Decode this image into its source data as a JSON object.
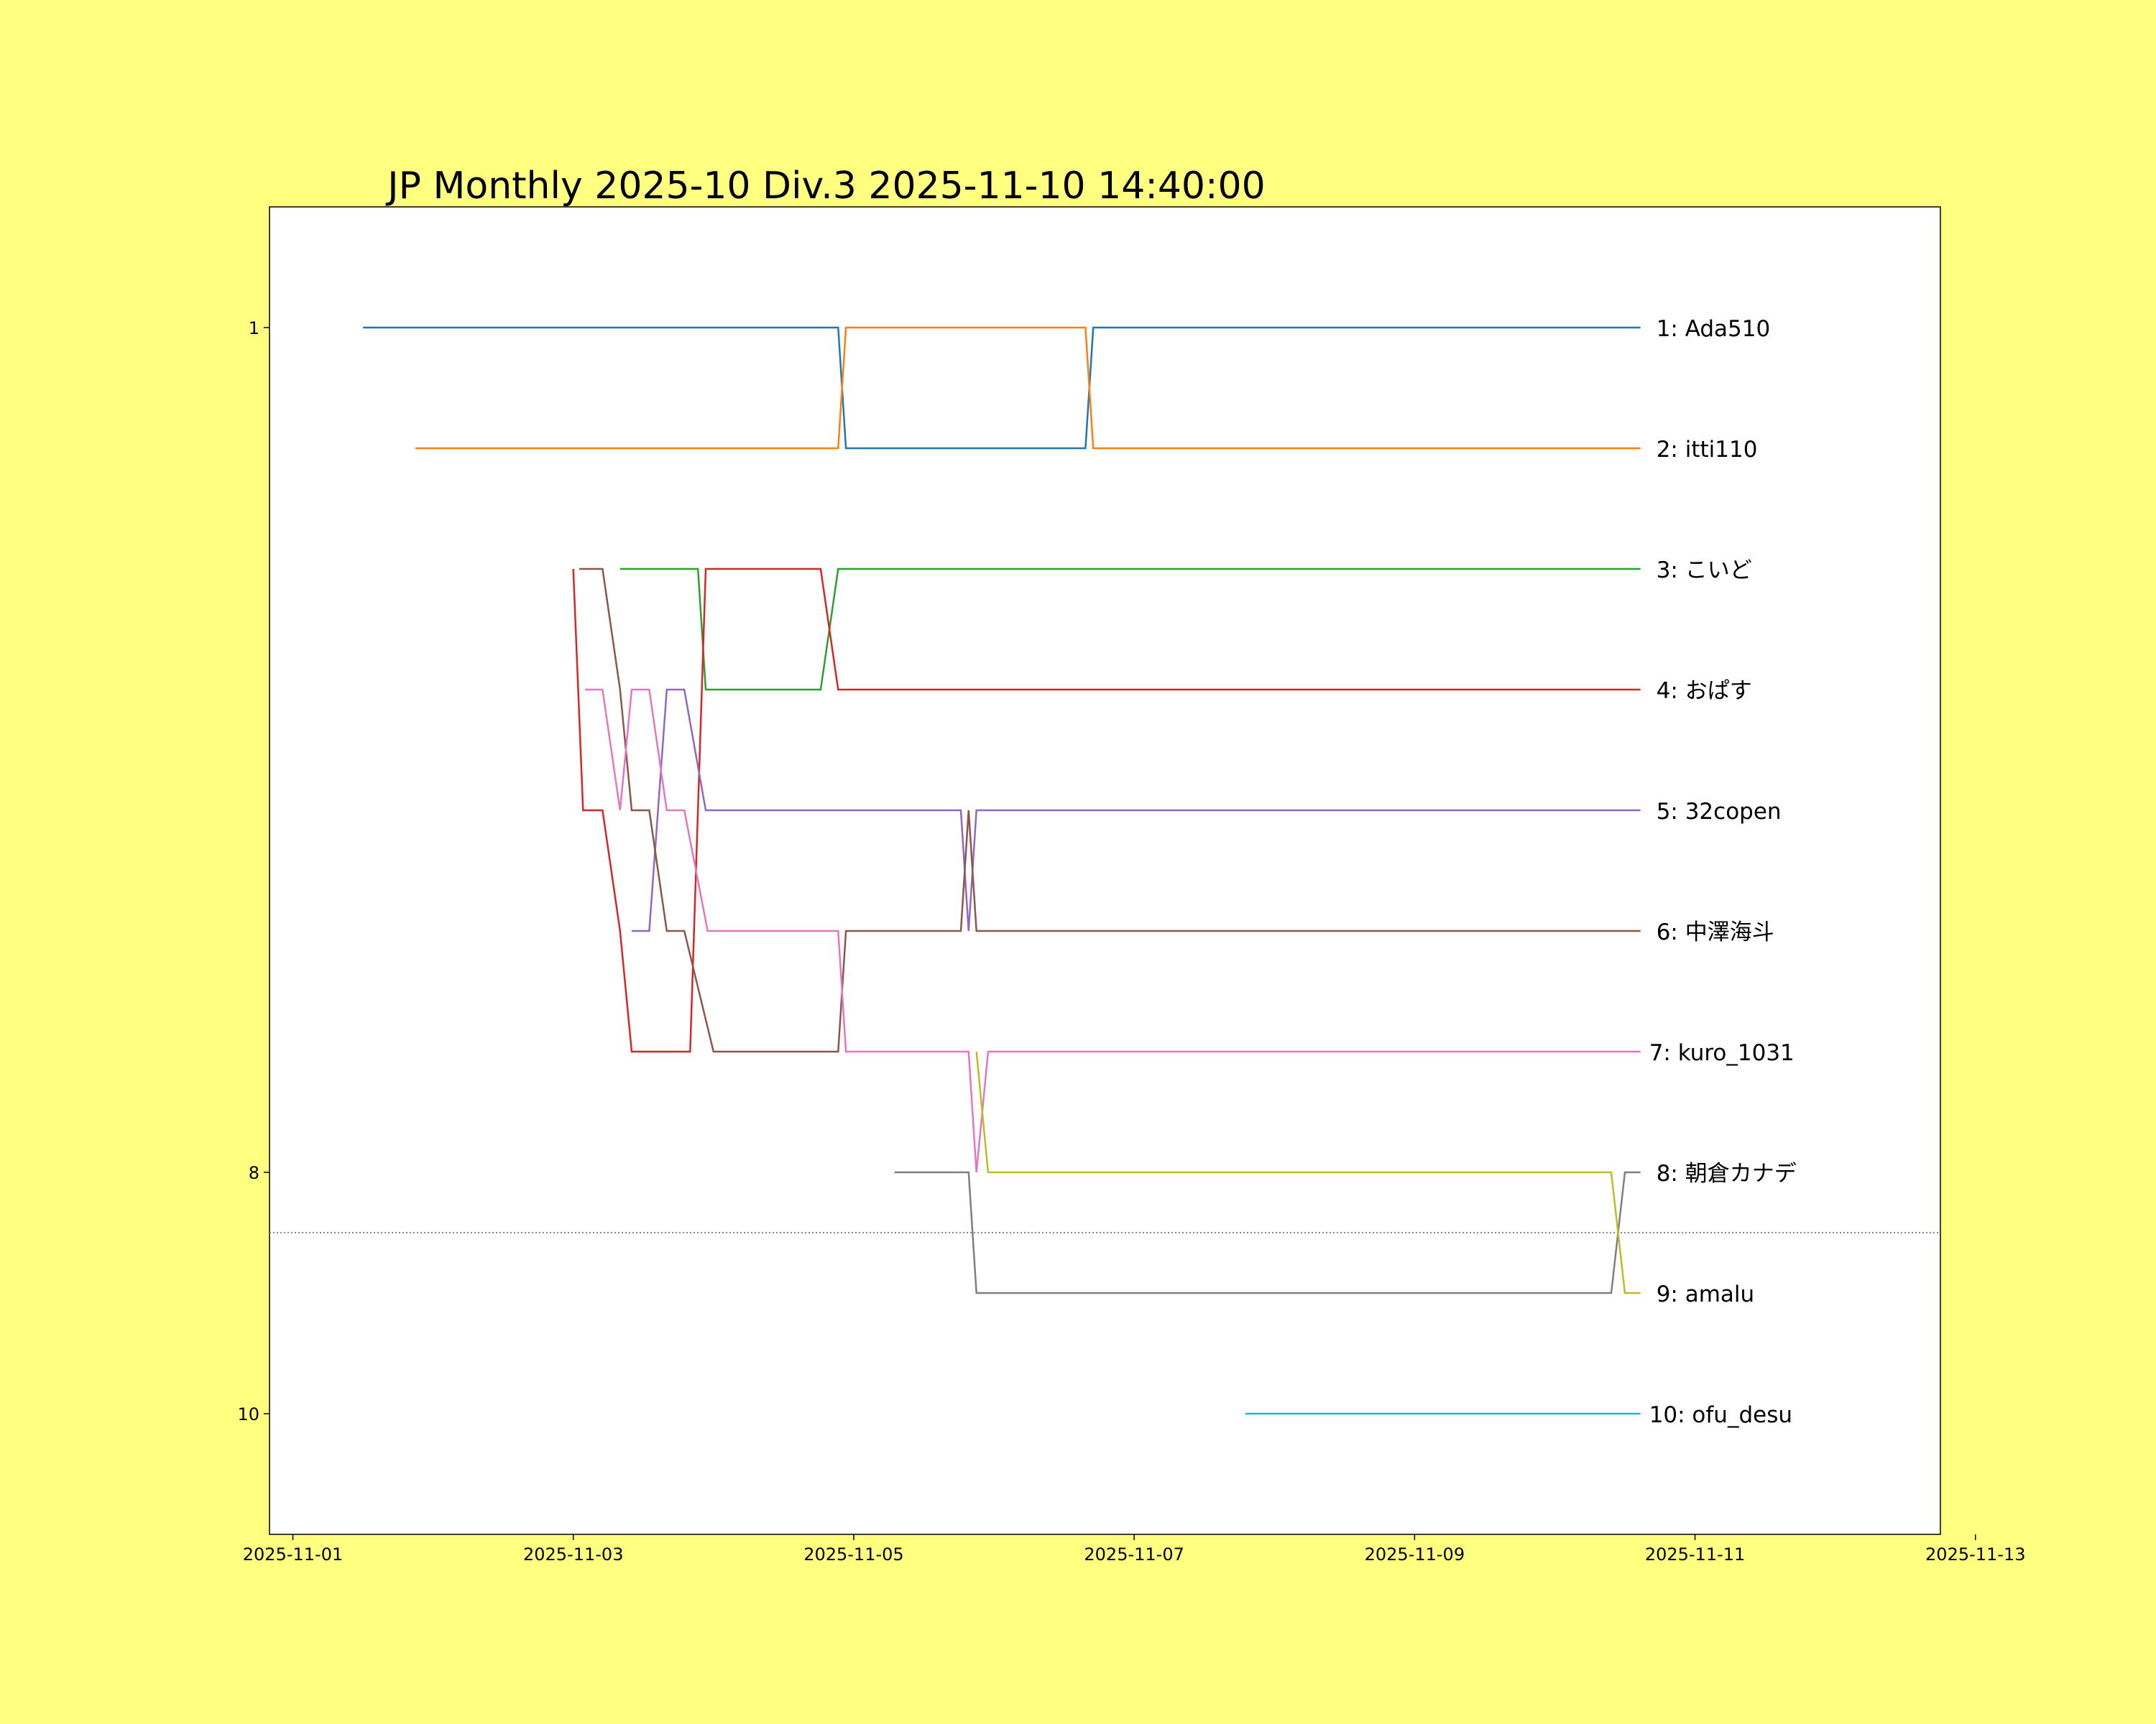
{
  "chart_data": {
    "type": "line",
    "title": "JP Monthly 2025-10 Div.3 2025-11-10 14:40:00",
    "xlabel": "",
    "ylabel": "",
    "x_axis": "date",
    "xlim": [
      "2025-10-31T20:00",
      "2025-11-12T18:00"
    ],
    "ylim": [
      11,
      0
    ],
    "y_inverted": true,
    "x_ticks": [
      "2025-11-01",
      "2025-11-03",
      "2025-11-05",
      "2025-11-07",
      "2025-11-09",
      "2025-11-11",
      "2025-11-13"
    ],
    "y_ticks": [
      "1",
      "8",
      "10"
    ],
    "cutoff_line": {
      "y": 8.5,
      "style": "dotted",
      "color": "#888888"
    },
    "grid": false,
    "legend": "none",
    "series": [
      {
        "name": "Ada510",
        "end_label": "1: Ada510",
        "color": "#1f77b4",
        "points": [
          [
            "2025-11-01T12:00",
            1
          ],
          [
            "2025-11-04T21:20",
            1
          ],
          [
            "2025-11-04T22:40",
            2
          ],
          [
            "2025-11-06T15:40",
            2
          ],
          [
            "2025-11-06T17:00",
            1
          ],
          [
            "2025-11-10T14:40",
            1
          ]
        ]
      },
      {
        "name": "itti110",
        "end_label": "2: itti110",
        "color": "#ff7f0e",
        "points": [
          [
            "2025-11-01T21:00",
            2
          ],
          [
            "2025-11-04T21:20",
            2
          ],
          [
            "2025-11-04T22:40",
            1
          ],
          [
            "2025-11-06T15:40",
            1
          ],
          [
            "2025-11-06T17:00",
            2
          ],
          [
            "2025-11-10T14:40",
            2
          ]
        ]
      },
      {
        "name": "こいど",
        "end_label": "3: こいど",
        "color": "#2ca02c",
        "points": [
          [
            "2025-11-03T08:00",
            3
          ],
          [
            "2025-11-03T21:20",
            3
          ],
          [
            "2025-11-03T22:40",
            4
          ],
          [
            "2025-11-04T18:20",
            4
          ],
          [
            "2025-11-04T21:20",
            3
          ],
          [
            "2025-11-10T14:40",
            3
          ]
        ]
      },
      {
        "name": "おぱす",
        "end_label": "4: おぱす",
        "color": "#d62728",
        "points": [
          [
            "2025-11-03T00:00",
            3
          ],
          [
            "2025-11-03T01:40",
            5
          ],
          [
            "2025-11-03T05:00",
            5
          ],
          [
            "2025-11-03T08:00",
            6
          ],
          [
            "2025-11-03T10:00",
            7
          ],
          [
            "2025-11-03T20:00",
            7
          ],
          [
            "2025-11-03T22:40",
            3
          ],
          [
            "2025-11-04T18:20",
            3
          ],
          [
            "2025-11-04T21:20",
            4
          ],
          [
            "2025-11-10T14:40",
            4
          ]
        ]
      },
      {
        "name": "32copen",
        "end_label": "5: 32copen",
        "color": "#9467bd",
        "points": [
          [
            "2025-11-03T10:00",
            6
          ],
          [
            "2025-11-03T13:00",
            6
          ],
          [
            "2025-11-03T16:00",
            4
          ],
          [
            "2025-11-03T19:00",
            4
          ],
          [
            "2025-11-03T22:40",
            5
          ],
          [
            "2025-11-05T18:20",
            5
          ],
          [
            "2025-11-05T19:40",
            6
          ],
          [
            "2025-11-05T21:00",
            5
          ],
          [
            "2025-11-10T14:40",
            5
          ]
        ]
      },
      {
        "name": "中澤海斗",
        "end_label": "6: 中澤海斗",
        "color": "#8c564b",
        "points": [
          [
            "2025-11-03T01:00",
            3
          ],
          [
            "2025-11-03T05:00",
            3
          ],
          [
            "2025-11-03T08:00",
            4
          ],
          [
            "2025-11-03T10:00",
            5
          ],
          [
            "2025-11-03T13:00",
            5
          ],
          [
            "2025-11-03T16:00",
            6
          ],
          [
            "2025-11-03T19:00",
            6
          ],
          [
            "2025-11-04T00:00",
            7
          ],
          [
            "2025-11-04T21:20",
            7
          ],
          [
            "2025-11-04T22:40",
            6
          ],
          [
            "2025-11-05T18:20",
            6
          ],
          [
            "2025-11-05T19:40",
            5
          ],
          [
            "2025-11-05T21:00",
            6
          ],
          [
            "2025-11-10T14:40",
            6
          ]
        ]
      },
      {
        "name": "kuro_1031",
        "end_label": "7: kuro_1031",
        "color": "#e377c2",
        "points": [
          [
            "2025-11-03T02:00",
            4
          ],
          [
            "2025-11-03T05:00",
            4
          ],
          [
            "2025-11-03T08:00",
            5
          ],
          [
            "2025-11-03T10:00",
            4
          ],
          [
            "2025-11-03T13:00",
            4
          ],
          [
            "2025-11-03T16:00",
            5
          ],
          [
            "2025-11-03T19:00",
            5
          ],
          [
            "2025-11-03T23:00",
            6
          ],
          [
            "2025-11-04T21:20",
            6
          ],
          [
            "2025-11-04T22:40",
            7
          ],
          [
            "2025-11-05T19:40",
            7
          ],
          [
            "2025-11-05T21:00",
            8
          ],
          [
            "2025-11-05T23:00",
            7
          ],
          [
            "2025-11-10T14:40",
            7
          ]
        ]
      },
      {
        "name": "朝倉カナデ",
        "end_label": "8: 朝倉カナデ",
        "color": "#7f7f7f",
        "points": [
          [
            "2025-11-05T07:00",
            8
          ],
          [
            "2025-11-05T19:40",
            8
          ],
          [
            "2025-11-05T21:00",
            9
          ],
          [
            "2025-11-10T09:40",
            9
          ],
          [
            "2025-11-10T12:00",
            8
          ],
          [
            "2025-11-10T14:40",
            8
          ]
        ]
      },
      {
        "name": "amalu",
        "end_label": "9: amalu",
        "color": "#bcbd22",
        "points": [
          [
            "2025-11-05T21:00",
            7
          ],
          [
            "2025-11-05T23:00",
            8
          ],
          [
            "2025-11-10T09:40",
            8
          ],
          [
            "2025-11-10T12:00",
            9
          ],
          [
            "2025-11-10T14:40",
            9
          ]
        ]
      },
      {
        "name": "ofu_desu",
        "end_label": "10: ofu_desu",
        "color": "#17becf",
        "points": [
          [
            "2025-11-07T19:00",
            10
          ],
          [
            "2025-11-10T14:40",
            10
          ]
        ]
      }
    ]
  }
}
